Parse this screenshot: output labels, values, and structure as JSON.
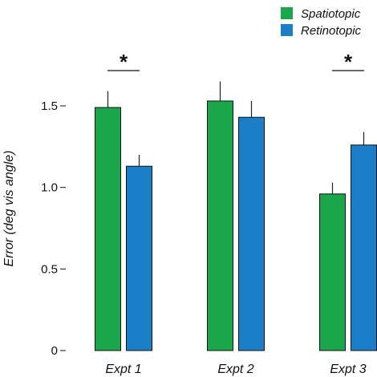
{
  "chart_data": {
    "type": "bar",
    "categories": [
      "Expt 1",
      "Expt 2",
      "Expt 3"
    ],
    "series": [
      {
        "name": "Spatiotopic",
        "color": "#1aa64a",
        "values": [
          1.49,
          1.53,
          0.96
        ],
        "errors": [
          0.1,
          0.12,
          0.07
        ]
      },
      {
        "name": "Retinotopic",
        "color": "#1a7fc6",
        "values": [
          1.13,
          1.43,
          1.26
        ],
        "errors": [
          0.07,
          0.1,
          0.08
        ]
      }
    ],
    "ylabel": "Error (deg vis angle)",
    "yticks": [
      "0",
      "0.5",
      "1.0",
      "1.5"
    ],
    "ytick_values": [
      0,
      0.5,
      1.0,
      1.5
    ],
    "ylim": [
      0,
      1.5
    ],
    "legend_position": "top-right",
    "significance": [
      {
        "category": "Expt 1",
        "label": "*"
      },
      {
        "category": "Expt 3",
        "label": "*"
      }
    ]
  }
}
